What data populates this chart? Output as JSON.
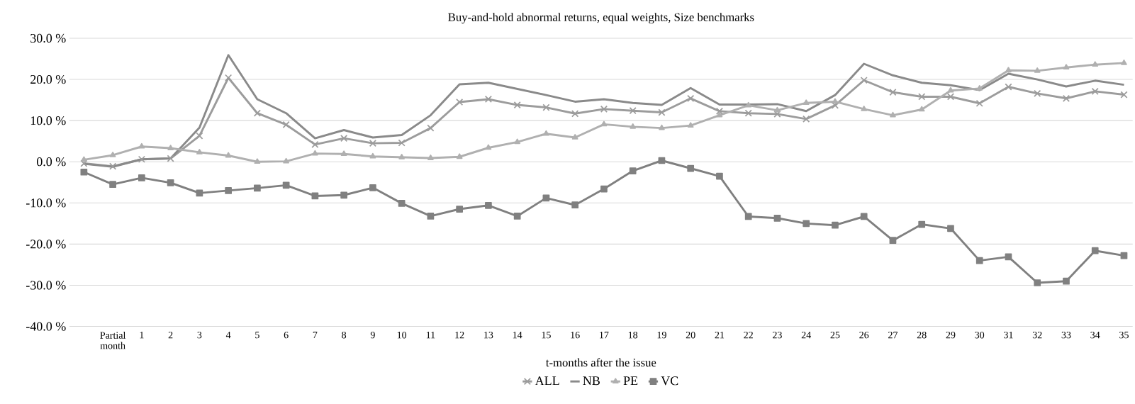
{
  "chart_data": {
    "type": "line",
    "title": "Buy-and-hold abnormal returns, equal weights, Size benchmarks",
    "xlabel": "t-months after the issue",
    "categories": [
      null,
      "Partial month",
      "1",
      "2",
      "3",
      "4",
      "5",
      "6",
      "7",
      "8",
      "9",
      "10",
      "11",
      "12",
      "13",
      "14",
      "15",
      "16",
      "17",
      "18",
      "19",
      "20",
      "21",
      "22",
      "23",
      "24",
      "25",
      "26",
      "27",
      "28",
      "29",
      "30",
      "31",
      "32",
      "33",
      "34",
      "35"
    ],
    "ylim": [
      -40,
      30
    ],
    "yticks": [
      {
        "value": -40,
        "label": "-40.0 %"
      },
      {
        "value": -30,
        "label": "-30.0 %"
      },
      {
        "value": -20,
        "label": "-20.0 %"
      },
      {
        "value": -10,
        "label": "-10.0 %"
      },
      {
        "value": 0,
        "label": "0.0 %"
      },
      {
        "value": 10,
        "label": "10.0 %"
      },
      {
        "value": 20,
        "label": "20.0 %"
      },
      {
        "value": 30,
        "label": "30.0 %"
      }
    ],
    "grid": "y",
    "legend": "bottom",
    "series": [
      {
        "name": "ALL",
        "color": "#9c9c9c",
        "marker": "cross",
        "values": [
          -0.4,
          -1.1,
          0.6,
          0.8,
          6.3,
          20.4,
          11.8,
          9.0,
          4.2,
          5.7,
          4.5,
          4.6,
          8.2,
          14.5,
          15.2,
          13.8,
          13.2,
          11.7,
          12.8,
          12.4,
          12.0,
          15.4,
          12.3,
          11.8,
          11.6,
          10.4,
          13.7,
          19.8,
          16.9,
          15.8,
          15.8,
          14.2,
          18.2,
          16.6,
          15.4,
          17.1,
          16.3
        ]
      },
      {
        "name": "NB",
        "color": "#8a8a8a",
        "marker": "none",
        "values": [
          -0.5,
          -1.2,
          0.6,
          0.8,
          8.3,
          25.9,
          15.2,
          11.8,
          5.7,
          7.7,
          5.9,
          6.5,
          11.3,
          18.8,
          19.2,
          17.7,
          16.2,
          14.6,
          15.2,
          14.3,
          13.8,
          17.9,
          13.9,
          13.9,
          14.0,
          12.3,
          16.2,
          23.8,
          21.0,
          19.2,
          18.6,
          17.4,
          21.4,
          20.0,
          18.3,
          19.7,
          18.7
        ]
      },
      {
        "name": "PE",
        "color": "#b0b0b0",
        "marker": "triangle",
        "values": [
          0.5,
          1.6,
          3.7,
          3.3,
          2.3,
          1.5,
          0.0,
          0.1,
          2.0,
          1.9,
          1.3,
          1.1,
          0.9,
          1.2,
          3.4,
          4.8,
          6.8,
          5.9,
          9.1,
          8.5,
          8.2,
          8.8,
          11.3,
          13.7,
          12.5,
          14.3,
          14.6,
          12.8,
          11.3,
          12.7,
          17.3,
          17.8,
          22.2,
          22.1,
          22.9,
          23.6,
          24.0
        ]
      },
      {
        "name": "VC",
        "color": "#808080",
        "marker": "square",
        "values": [
          -2.5,
          -5.5,
          -3.9,
          -5.1,
          -7.6,
          -7.0,
          -6.4,
          -5.7,
          -8.3,
          -8.1,
          -6.3,
          -10.1,
          -13.2,
          -11.5,
          -10.6,
          -13.2,
          -8.8,
          -10.5,
          -6.6,
          -2.2,
          0.3,
          -1.6,
          -3.5,
          -13.3,
          -13.7,
          -15.0,
          -15.4,
          -13.3,
          -19.1,
          -15.2,
          -16.2,
          -24.0,
          -23.1,
          -29.4,
          -29.0,
          -21.6,
          -22.8
        ]
      }
    ]
  }
}
